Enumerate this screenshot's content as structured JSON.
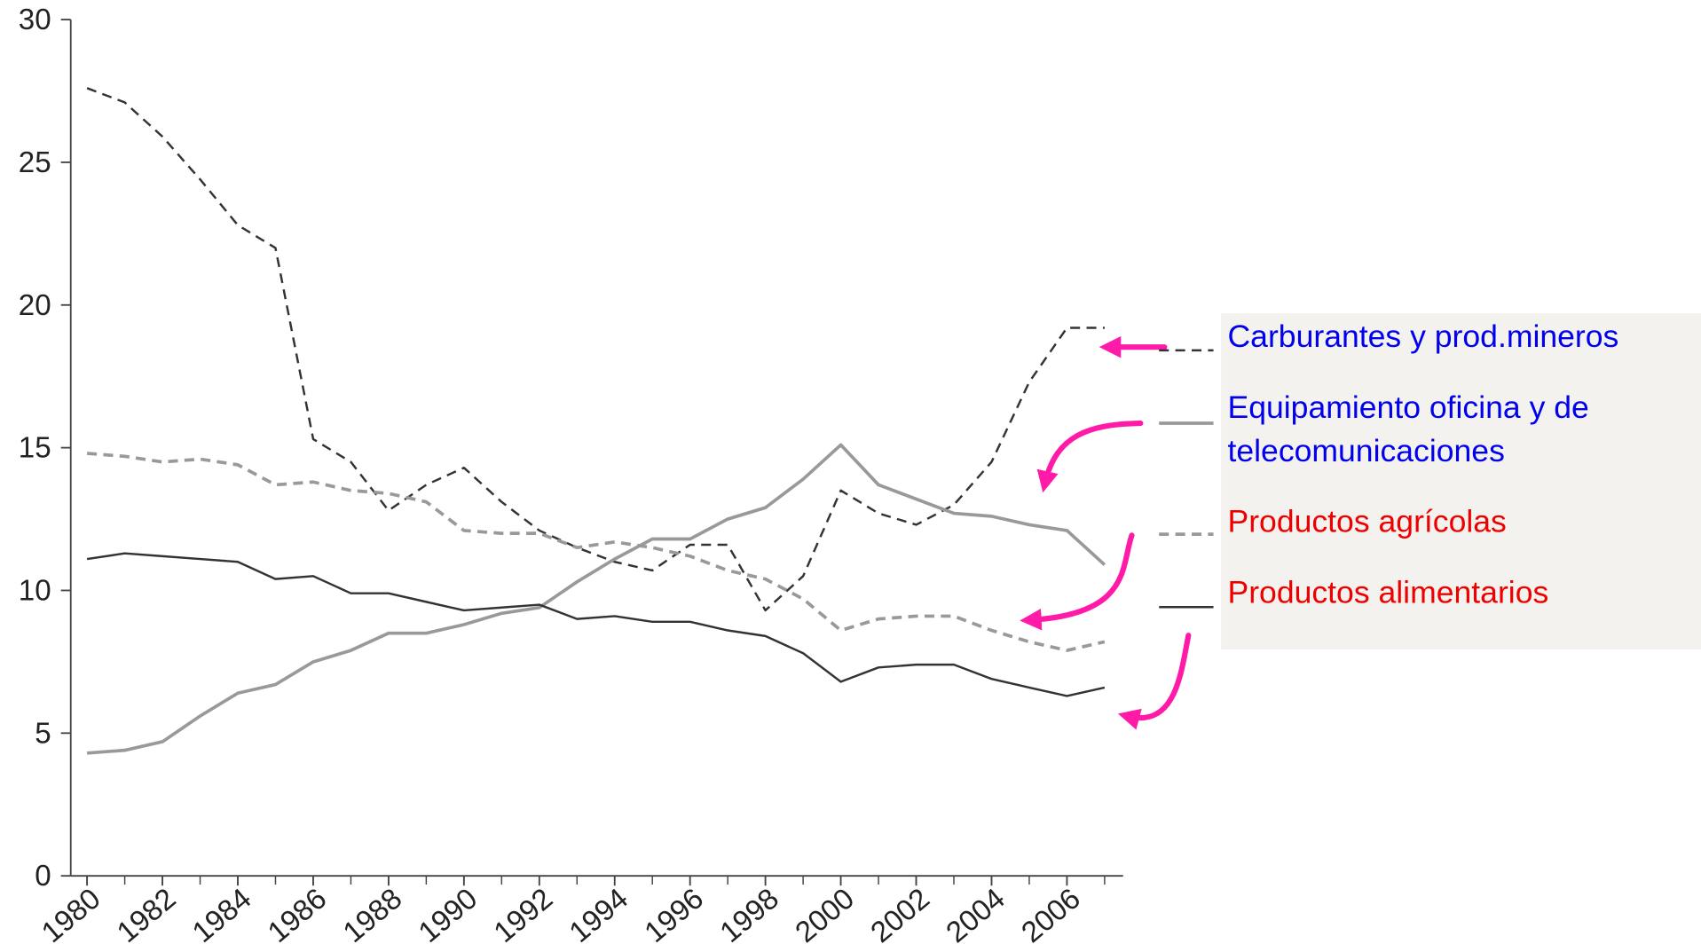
{
  "chart_data": {
    "type": "line",
    "x": [
      1980,
      1981,
      1982,
      1983,
      1984,
      1985,
      1986,
      1987,
      1988,
      1989,
      1990,
      1991,
      1992,
      1993,
      1994,
      1995,
      1996,
      1997,
      1998,
      1999,
      2000,
      2001,
      2002,
      2003,
      2004,
      2005,
      2006,
      2007
    ],
    "xlim": [
      1980,
      2007
    ],
    "xticks": [
      1980,
      1982,
      1984,
      1986,
      1988,
      1990,
      1992,
      1994,
      1996,
      1998,
      2000,
      2002,
      2004,
      2006
    ],
    "ylim": [
      0,
      30
    ],
    "yticks": [
      0,
      5,
      10,
      15,
      20,
      25,
      30
    ],
    "series": [
      {
        "name": "Carburantes y prod.mineros",
        "color": "#333333",
        "dash": true,
        "label_color": "#0000ee",
        "values": [
          27.6,
          27.1,
          25.9,
          24.4,
          22.8,
          22.0,
          15.3,
          14.5,
          12.8,
          13.7,
          14.3,
          13.1,
          12.1,
          11.5,
          11.0,
          10.7,
          11.6,
          11.6,
          9.3,
          10.5,
          13.5,
          12.7,
          12.3,
          13.0,
          14.5,
          17.3,
          19.2,
          19.2
        ]
      },
      {
        "name": "Equipamiento oficina y de telecomunicaciones",
        "color": "#999999",
        "dash": false,
        "label_color": "#0000ee",
        "values": [
          4.3,
          4.4,
          4.7,
          5.6,
          6.4,
          6.7,
          7.5,
          7.9,
          8.5,
          8.5,
          8.8,
          9.2,
          9.4,
          10.3,
          11.1,
          11.8,
          11.8,
          12.5,
          12.9,
          13.9,
          15.1,
          13.7,
          13.2,
          12.7,
          12.6,
          12.3,
          12.1,
          10.9
        ]
      },
      {
        "name": "Productos agrícolas",
        "color": "#999999",
        "dash": true,
        "label_color": "#ee0000",
        "values": [
          14.8,
          14.7,
          14.5,
          14.6,
          14.4,
          13.7,
          13.8,
          13.5,
          13.4,
          13.1,
          12.1,
          12.0,
          12.0,
          11.5,
          11.7,
          11.5,
          11.2,
          10.7,
          10.4,
          9.7,
          8.6,
          9.0,
          9.1,
          9.1,
          8.6,
          8.2,
          7.9,
          8.2
        ]
      },
      {
        "name": "Productos alimentarios",
        "color": "#333333",
        "dash": false,
        "label_color": "#ee0000",
        "values": [
          11.1,
          11.3,
          11.2,
          11.1,
          11.0,
          10.4,
          10.5,
          9.9,
          9.9,
          9.6,
          9.3,
          9.4,
          9.5,
          9.0,
          9.1,
          8.9,
          8.9,
          8.6,
          8.4,
          7.8,
          6.8,
          7.3,
          7.4,
          7.4,
          6.9,
          6.6,
          6.3,
          6.6
        ]
      }
    ]
  }
}
